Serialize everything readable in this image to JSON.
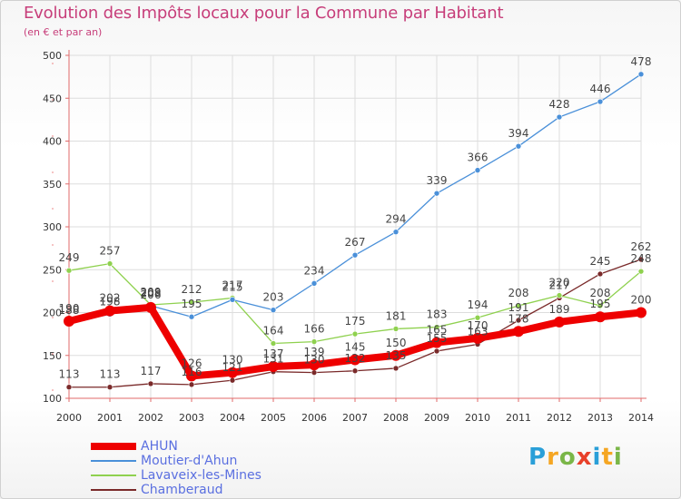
{
  "header": {
    "title": "Evolution des Impôts locaux pour la Commune par Habitant",
    "subtitle": "(en € et par an)"
  },
  "colors": {
    "title": "#c73e7a",
    "axis": "#e06a6a",
    "grid": "#dddddd",
    "tick_label": "#333333",
    "legend_text": "#5a6fe0"
  },
  "logo": {
    "letters": [
      "P",
      "r",
      "o",
      "x",
      "i",
      "t",
      "i"
    ],
    "colors": [
      "#2a9fd8",
      "#f5a623",
      "#7ab648",
      "#e8402a",
      "#2a9fd8",
      "#f5a623",
      "#7ab648"
    ]
  },
  "chart_data": {
    "type": "line",
    "title": "Evolution des Impôts locaux pour la Commune par Habitant",
    "subtitle": "(en € et par an)",
    "xlabel": "",
    "ylabel": "",
    "x": [
      "2000",
      "2001",
      "2002",
      "2003",
      "2004",
      "2005",
      "2006",
      "2007",
      "2008",
      "2009",
      "2010",
      "2011",
      "2012",
      "2013",
      "2014"
    ],
    "ylim": [
      100,
      500
    ],
    "yticks": [
      "100",
      "150",
      "200",
      "250",
      "300",
      "350",
      "400",
      "450",
      "500"
    ],
    "grid": true,
    "legend_position": "bottom-left",
    "series": [
      {
        "name": "AHUN",
        "color": "#ee0000",
        "values": [
          190,
          202,
          206,
          126,
          130,
          137,
          139,
          145,
          150,
          165,
          170,
          178,
          189,
          195,
          200
        ],
        "labels": [
          "190",
          "202",
          "206",
          "126",
          "130",
          "137",
          "139",
          "145",
          "150",
          "165",
          "170",
          "178",
          "189",
          "195",
          "200"
        ]
      },
      {
        "name": "Moutier-d'Ahun",
        "color": "#4a90d9",
        "values": [
          188,
          198,
          208,
          195,
          215,
          203,
          234,
          267,
          294,
          339,
          366,
          394,
          428,
          446,
          478
        ],
        "labels": [
          "188",
          "198",
          "208",
          "195",
          "215",
          "203",
          "234",
          "267",
          "294",
          "339",
          "366",
          "394",
          "428",
          "446",
          "478"
        ]
      },
      {
        "name": "Lavaveix-les-Mines",
        "color": "#8fd14f",
        "values": [
          249,
          257,
          209,
          212,
          217,
          164,
          166,
          175,
          181,
          183,
          194,
          208,
          220,
          208,
          248
        ],
        "labels": [
          "249",
          "257",
          "209",
          "212",
          "217",
          "164",
          "166",
          "175",
          "181",
          "183",
          "194",
          "208",
          "220",
          "208",
          "248"
        ]
      },
      {
        "name": "Chamberaud",
        "color": "#7a2a2a",
        "values": [
          113,
          113,
          117,
          116,
          121,
          131,
          130,
          132,
          135,
          155,
          163,
          191,
          217,
          245,
          262
        ],
        "labels": [
          "113",
          "113",
          "117",
          "116",
          "121",
          "131",
          "130",
          "132",
          "135",
          "155",
          "163",
          "191",
          "217",
          "245",
          "262"
        ]
      }
    ]
  }
}
